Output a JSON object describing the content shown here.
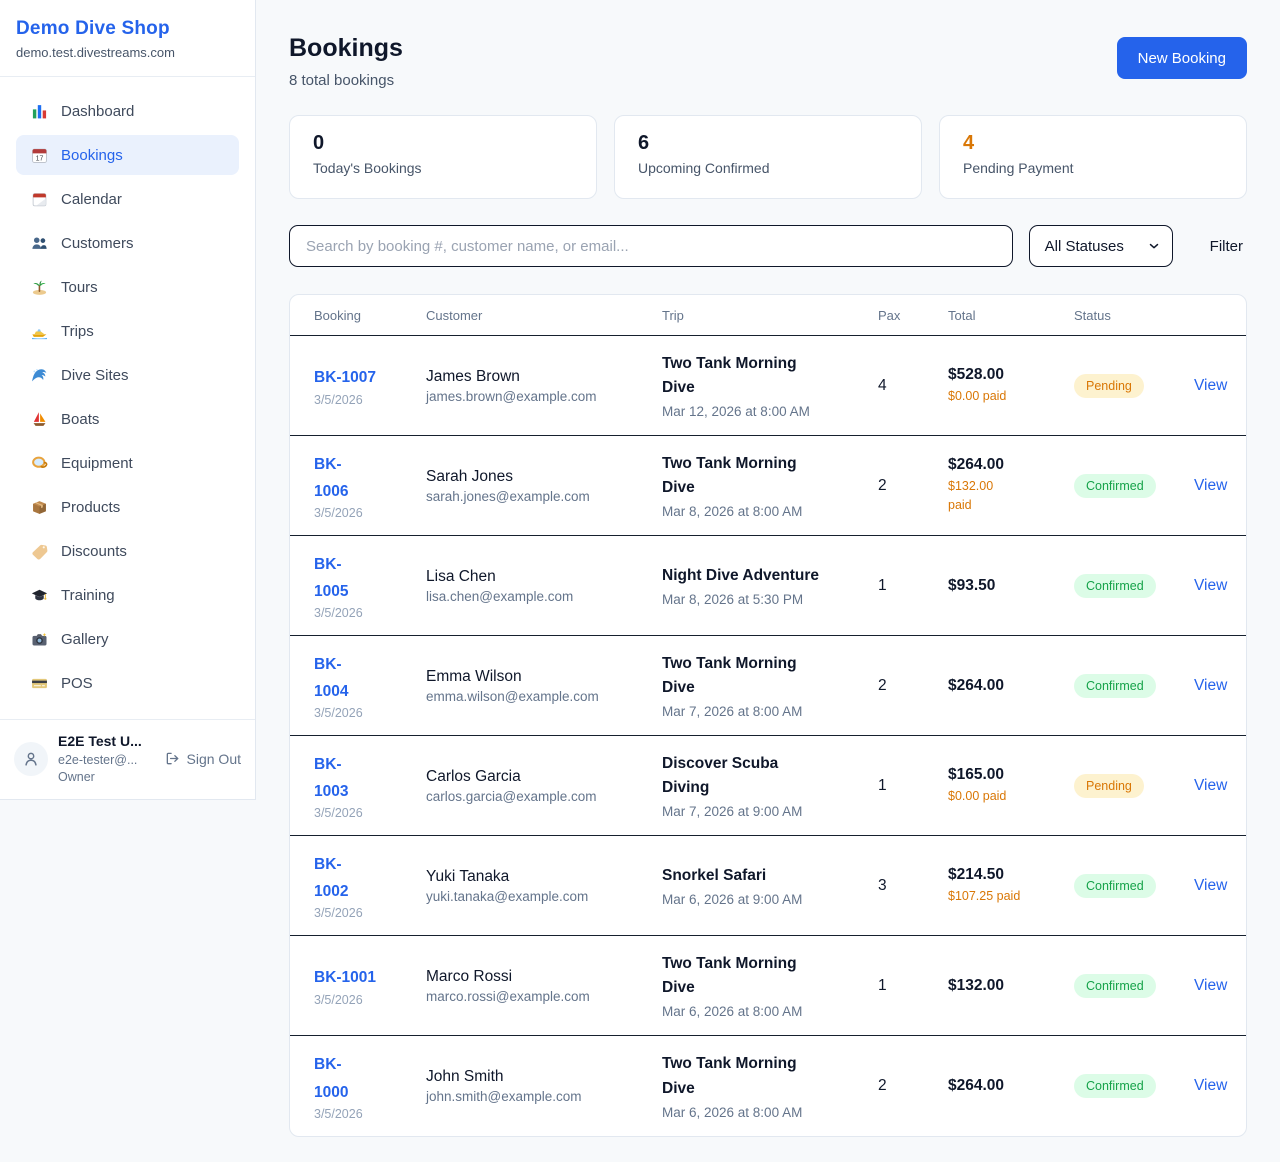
{
  "sidebar": {
    "brand": "Demo Dive Shop",
    "domain": "demo.test.divestreams.com",
    "items": [
      {
        "label": "Dashboard",
        "icon": "bar-chart-icon",
        "active": false
      },
      {
        "label": "Bookings",
        "icon": "calendar-icon",
        "active": true
      },
      {
        "label": "Calendar",
        "icon": "tearoff-calendar-icon",
        "active": false
      },
      {
        "label": "Customers",
        "icon": "people-icon",
        "active": false
      },
      {
        "label": "Tours",
        "icon": "island-icon",
        "active": false
      },
      {
        "label": "Trips",
        "icon": "speedboat-icon",
        "active": false
      },
      {
        "label": "Dive Sites",
        "icon": "wave-icon",
        "active": false
      },
      {
        "label": "Boats",
        "icon": "sailboat-icon",
        "active": false
      },
      {
        "label": "Equipment",
        "icon": "dive-mask-icon",
        "active": false
      },
      {
        "label": "Products",
        "icon": "package-icon",
        "active": false
      },
      {
        "label": "Discounts",
        "icon": "tag-icon",
        "active": false
      },
      {
        "label": "Training",
        "icon": "graduation-cap-icon",
        "active": false
      },
      {
        "label": "Gallery",
        "icon": "camera-icon",
        "active": false
      },
      {
        "label": "POS",
        "icon": "credit-card-icon",
        "active": false
      }
    ],
    "user": {
      "name": "E2E Test U...",
      "email": "e2e-tester@...",
      "role": "Owner",
      "sign_out_label": "Sign Out"
    }
  },
  "header": {
    "title": "Bookings",
    "subtitle": "8 total bookings",
    "new_booking_label": "New Booking"
  },
  "stats": [
    {
      "value": "0",
      "label": "Today's Bookings",
      "value_color": "#0f172a"
    },
    {
      "value": "6",
      "label": "Upcoming Confirmed",
      "value_color": "#0f172a"
    },
    {
      "value": "4",
      "label": "Pending Payment",
      "value_color": "#d97706"
    }
  ],
  "filters": {
    "search_placeholder": "Search by booking #, customer name, or email...",
    "status_select_value": "All Statuses",
    "filter_button_label": "Filter"
  },
  "table": {
    "headers": [
      "Booking",
      "Customer",
      "Trip",
      "Pax",
      "Total",
      "Status"
    ],
    "view_label": "View",
    "rows": [
      {
        "id": "BK-1007",
        "date": "3/5/2026",
        "customer": "James Brown",
        "email": "james.brown@example.com",
        "trip": "Two Tank Morning\nDive",
        "datetime": "Mar 12, 2026 at 8:00 AM",
        "pax": "4",
        "total": "$528.00",
        "paid": "$0.00 paid",
        "status": "Pending"
      },
      {
        "id": "BK-\n1006",
        "date": "3/5/2026",
        "customer": "Sarah Jones",
        "email": "sarah.jones@example.com",
        "trip": "Two Tank Morning\nDive",
        "datetime": "Mar 8, 2026 at 8:00 AM",
        "pax": "2",
        "total": "$264.00",
        "paid": "$132.00\npaid",
        "status": "Confirmed"
      },
      {
        "id": "BK-\n1005",
        "date": "3/5/2026",
        "customer": "Lisa Chen",
        "email": "lisa.chen@example.com",
        "trip": "Night Dive Adventure",
        "datetime": "Mar 8, 2026 at 5:30 PM",
        "pax": "1",
        "total": "$93.50",
        "paid": "",
        "status": "Confirmed"
      },
      {
        "id": "BK-\n1004",
        "date": "3/5/2026",
        "customer": "Emma Wilson",
        "email": "emma.wilson@example.com",
        "trip": "Two Tank Morning\nDive",
        "datetime": "Mar 7, 2026 at 8:00 AM",
        "pax": "2",
        "total": "$264.00",
        "paid": "",
        "status": "Confirmed"
      },
      {
        "id": "BK-\n1003",
        "date": "3/5/2026",
        "customer": "Carlos Garcia",
        "email": "carlos.garcia@example.com",
        "trip": "Discover Scuba\nDiving",
        "datetime": "Mar 7, 2026 at 9:00 AM",
        "pax": "1",
        "total": "$165.00",
        "paid": "$0.00 paid",
        "status": "Pending"
      },
      {
        "id": "BK-\n1002",
        "date": "3/5/2026",
        "customer": "Yuki Tanaka",
        "email": "yuki.tanaka@example.com",
        "trip": "Snorkel Safari",
        "datetime": "Mar 6, 2026 at 9:00 AM",
        "pax": "3",
        "total": "$214.50",
        "paid": "$107.25 paid",
        "status": "Confirmed"
      },
      {
        "id": "BK-1001",
        "date": "3/5/2026",
        "customer": "Marco Rossi",
        "email": "marco.rossi@example.com",
        "trip": "Two Tank Morning\nDive",
        "datetime": "Mar 6, 2026 at 8:00 AM",
        "pax": "1",
        "total": "$132.00",
        "paid": "",
        "status": "Confirmed"
      },
      {
        "id": "BK-\n1000",
        "date": "3/5/2026",
        "customer": "John Smith",
        "email": "john.smith@example.com",
        "trip": "Two Tank Morning\nDive",
        "datetime": "Mar 6, 2026 at 8:00 AM",
        "pax": "2",
        "total": "$264.00",
        "paid": "",
        "status": "Confirmed"
      }
    ]
  },
  "colors": {
    "accent_blue": "#2563eb",
    "pending_text": "#d97706",
    "pending_bg": "#fdf2cf",
    "confirmed_text": "#16a34a",
    "confirmed_bg": "#dcfce7",
    "page_bg": "#f7f9fb",
    "row_divider": "#16202e"
  }
}
